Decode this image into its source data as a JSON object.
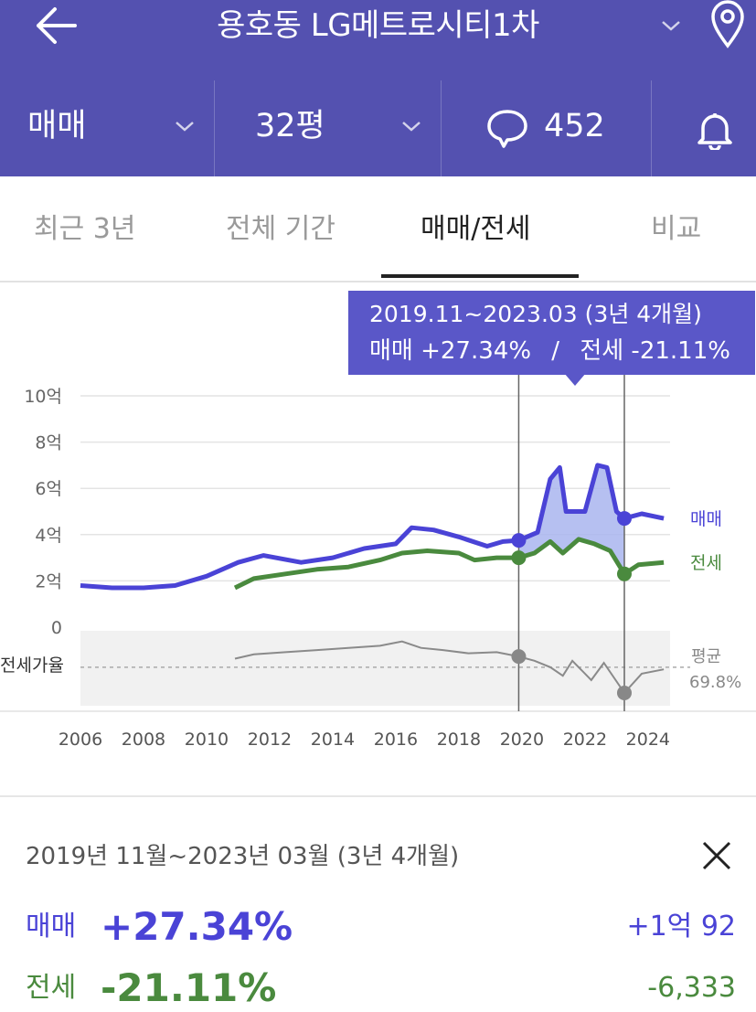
{
  "header": {
    "title": "용호동 LG메트로시티1차",
    "deal_type": "매매",
    "size": "32평",
    "comment_count": "452",
    "icons": [
      "back-arrow-icon",
      "chevron-down-icon",
      "location-pin-icon",
      "speech-bubble-icon",
      "bell-icon"
    ]
  },
  "tabs": [
    {
      "label": "최근 3년",
      "active": false
    },
    {
      "label": "전체 기간",
      "active": false
    },
    {
      "label": "매매/전세",
      "active": true
    },
    {
      "label": "비교",
      "active": false
    }
  ],
  "tooltip": {
    "period": "2019.11~2023.03 (3년 4개월)",
    "sale_label": "매매 +27.34%",
    "divider": "/",
    "jeonse_label": "전세 -21.11%"
  },
  "chart_data": {
    "type": "line",
    "y_ticks": [
      "10억",
      "8억",
      "6억",
      "4억",
      "2억",
      "0"
    ],
    "ylim": [
      0,
      10
    ],
    "x_ticks": [
      "2006",
      "2008",
      "2010",
      "2012",
      "2014",
      "2016",
      "2018",
      "2020",
      "2022",
      "2024"
    ],
    "xlim": [
      2006,
      2024.7
    ],
    "series": [
      {
        "name": "매매",
        "color": "#4a43d6",
        "x": [
          2006,
          2007,
          2008,
          2009,
          2010,
          2011,
          2011.8,
          2013,
          2014,
          2015,
          2016,
          2016.5,
          2017.2,
          2018,
          2018.9,
          2019.4,
          2019.9,
          2020.5,
          2020.9,
          2021.2,
          2021.4,
          2021.6,
          2022.0,
          2022.4,
          2022.7,
          2023.0,
          2023.25,
          2023.8,
          2024.5
        ],
        "values": [
          1.8,
          1.7,
          1.7,
          1.8,
          2.2,
          2.8,
          3.1,
          2.8,
          3.0,
          3.4,
          3.6,
          4.3,
          4.2,
          3.9,
          3.5,
          3.7,
          3.75,
          4.1,
          6.4,
          6.9,
          5.0,
          5.0,
          5.0,
          7.0,
          6.9,
          5.0,
          4.7,
          4.9,
          4.7
        ]
      },
      {
        "name": "전세",
        "color": "#4a8a3e",
        "x": [
          2010.9,
          2011.5,
          2012.5,
          2013.5,
          2014.5,
          2015.5,
          2016.2,
          2017,
          2018,
          2018.5,
          2019.2,
          2019.9,
          2020.4,
          2020.9,
          2021.3,
          2021.8,
          2022.3,
          2022.8,
          2023.25,
          2023.7,
          2024.5
        ],
        "values": [
          1.7,
          2.1,
          2.3,
          2.5,
          2.6,
          2.9,
          3.2,
          3.3,
          3.2,
          2.9,
          3.0,
          3.0,
          3.2,
          3.7,
          3.2,
          3.8,
          3.6,
          3.3,
          2.3,
          2.7,
          2.8
        ]
      },
      {
        "name": "전세가율",
        "x": [
          2010.9,
          2011.5,
          2012.5,
          2013.5,
          2014.5,
          2015.5,
          2016.2,
          2016.8,
          2017.5,
          2018.3,
          2019.2,
          2019.9,
          2020.4,
          2020.9,
          2021.3,
          2021.6,
          2022.2,
          2022.6,
          2023.25,
          2023.8,
          2024.5
        ],
        "values": [
          0.94,
          0.98,
          1.0,
          1.02,
          1.04,
          1.06,
          1.1,
          1.04,
          1.02,
          0.99,
          1.0,
          0.96,
          0.92,
          0.86,
          0.78,
          0.92,
          0.74,
          0.9,
          0.62,
          0.8,
          0.84
        ]
      }
    ],
    "legend": {
      "sale": "매매",
      "jeonse": "전세"
    },
    "ratio_label": "전세가율",
    "average_label": "평균",
    "average_value": "69.8%",
    "selection": {
      "start": 2019.9,
      "end": 2023.25
    }
  },
  "summary": {
    "period": "2019년 11월~2023년 03월 (3년 4개월)",
    "sale_label": "매매",
    "sale_pct": "+27.34%",
    "sale_amount": "+1억 92",
    "jeonse_label": "전세",
    "jeonse_pct": "-21.11%",
    "jeonse_amount": "-6,333"
  }
}
